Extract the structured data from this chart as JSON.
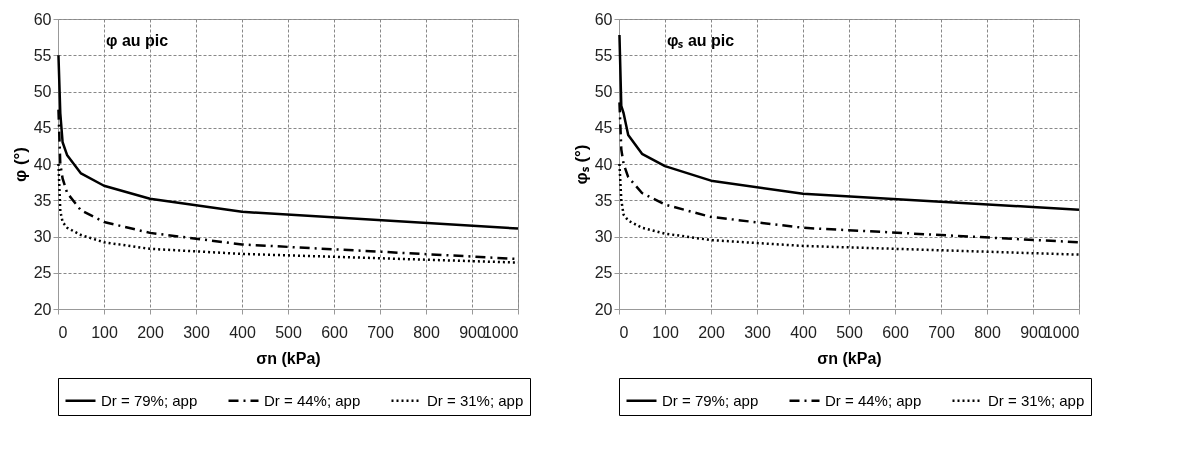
{
  "chart_data": [
    {
      "type": "line",
      "title": "φ au pic",
      "xlabel": "σn  (kPa)",
      "ylabel": "φ  (°)",
      "x": [
        1,
        5,
        10,
        20,
        50,
        100,
        200,
        400,
        1000
      ],
      "series": [
        {
          "name": "Dr = 79%; app",
          "color": "#000000",
          "line_style": "solid",
          "values": [
            55,
            47,
            43,
            41.2,
            38.7,
            37,
            35.2,
            33.4,
            31.1
          ]
        },
        {
          "name": "Dr = 44%; app",
          "color": "#000000",
          "line_style": "dashed",
          "values": [
            47.5,
            40,
            38,
            36,
            33.6,
            32,
            30.5,
            28.9,
            26.9
          ]
        },
        {
          "name": "Dr = 31%; app",
          "color": "#000000",
          "line_style": "dotted",
          "values": [
            40,
            33.5,
            32,
            31.2,
            30.2,
            29.2,
            28.3,
            27.6,
            26.4
          ]
        }
      ],
      "xlim": [
        0,
        1000
      ],
      "xticks": [
        0,
        100,
        200,
        300,
        400,
        500,
        600,
        700,
        800,
        900,
        1000
      ],
      "ylim": [
        20,
        60
      ],
      "yticks": [
        20,
        25,
        30,
        35,
        40,
        45,
        50,
        55,
        60
      ],
      "grid": true,
      "legend": "bottom",
      "marker": "none"
    },
    {
      "type": "line",
      "title": "φₛ au pic",
      "xlabel": "σn  (kPa)",
      "ylabel": "φₛ  (°)",
      "x": [
        1,
        5,
        10,
        20,
        50,
        100,
        200,
        400,
        1000
      ],
      "series": [
        {
          "name": "Dr = 79%; app",
          "color": "#000000",
          "line_style": "solid",
          "values": [
            57.8,
            48,
            47,
            44,
            41.4,
            39.7,
            37.7,
            35.9,
            33.7
          ]
        },
        {
          "name": "Dr = 44%; app",
          "color": "#000000",
          "line_style": "dashed",
          "values": [
            48.5,
            42,
            40,
            38.2,
            36,
            34.4,
            32.7,
            31.2,
            29.2
          ]
        },
        {
          "name": "Dr = 31%; app",
          "color": "#000000",
          "line_style": "dotted",
          "values": [
            40,
            35,
            33,
            32.2,
            31.2,
            30.4,
            29.5,
            28.7,
            27.5
          ]
        }
      ],
      "xlim": [
        0,
        1000
      ],
      "xticks": [
        0,
        100,
        200,
        300,
        400,
        500,
        600,
        700,
        800,
        900,
        1000
      ],
      "ylim": [
        20,
        60
      ],
      "yticks": [
        20,
        25,
        30,
        35,
        40,
        45,
        50,
        55,
        60
      ],
      "grid": true,
      "legend": "bottom",
      "marker": "none"
    }
  ]
}
